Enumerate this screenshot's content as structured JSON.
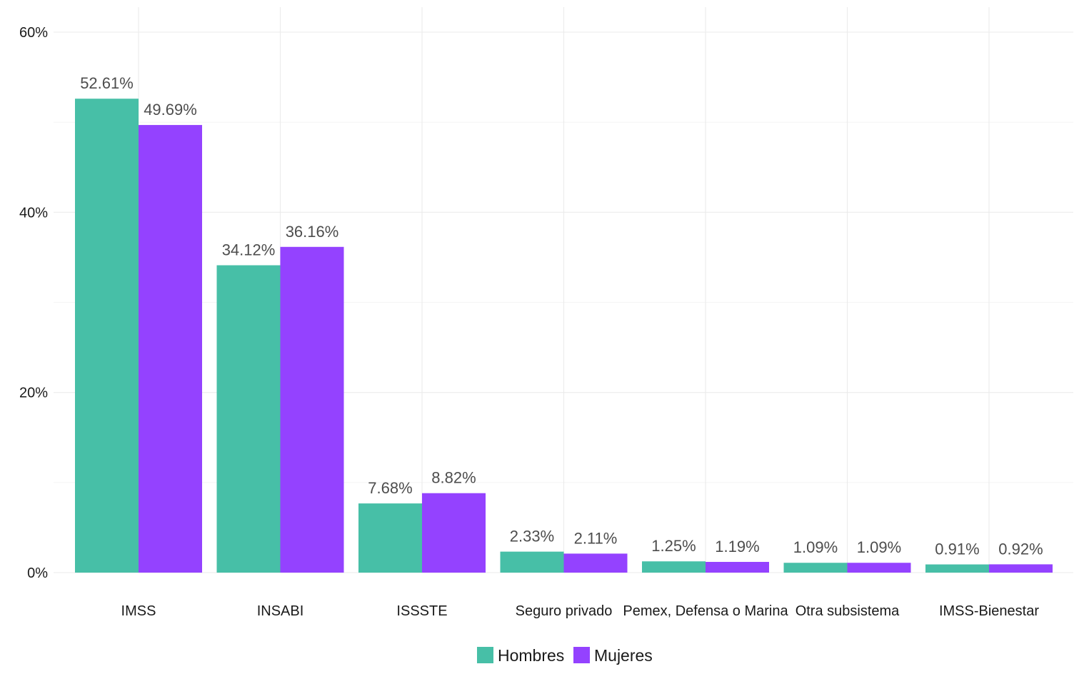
{
  "chart_data": {
    "type": "bar",
    "categories": [
      "IMSS",
      "INSABI",
      "ISSSTE",
      "Seguro privado",
      "Pemex, Defensa o Marina",
      "Otra subsistema",
      "IMSS-Bienestar"
    ],
    "series": [
      {
        "name": "Hombres",
        "color": "#47BFA7",
        "values": [
          52.61,
          34.12,
          7.68,
          2.33,
          1.25,
          1.09,
          0.91
        ],
        "labels": [
          "52.61%",
          "34.12%",
          "7.68%",
          "2.33%",
          "1.25%",
          "1.09%",
          "0.91%"
        ]
      },
      {
        "name": "Mujeres",
        "color": "#9442FF",
        "values": [
          49.69,
          36.16,
          8.82,
          2.11,
          1.19,
          1.09,
          0.92
        ],
        "labels": [
          "49.69%",
          "36.16%",
          "8.82%",
          "2.11%",
          "1.19%",
          "1.09%",
          "0.92%"
        ]
      }
    ],
    "ylim": [
      0,
      60
    ],
    "yticks": [
      0,
      20,
      40,
      60
    ],
    "ytick_labels": [
      "0%",
      "20%",
      "40%",
      "60%"
    ],
    "title": "",
    "xlabel": "",
    "ylabel": "",
    "grid": true,
    "legend_position": "bottom"
  }
}
